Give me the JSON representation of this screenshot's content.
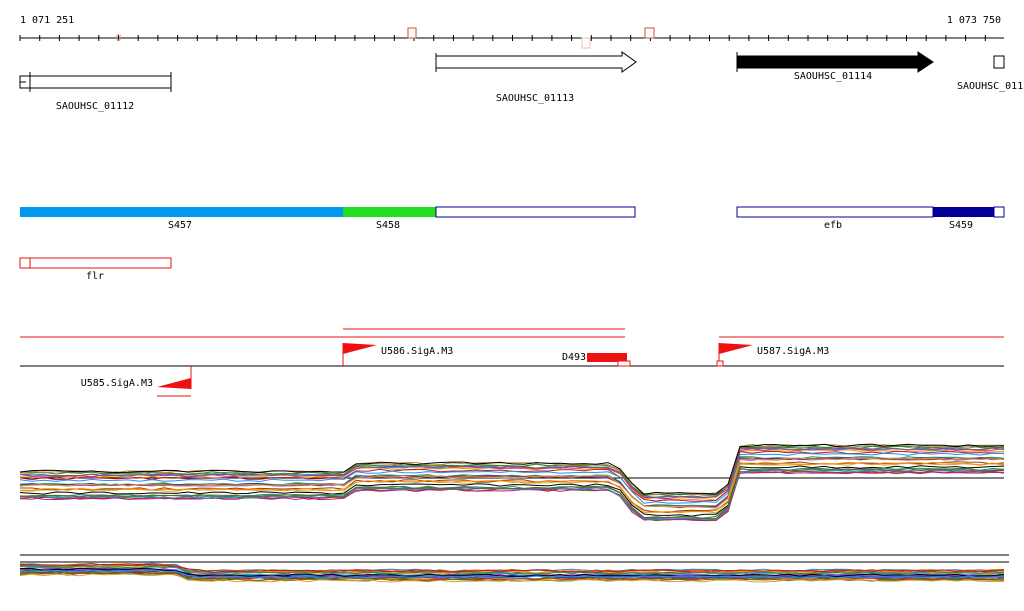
{
  "ruler": {
    "start": "1 071 251",
    "end": "1 073 750"
  },
  "genes": [
    {
      "id": "g1",
      "label": "SAOUHSC_01112",
      "filled": false,
      "direction": "left"
    },
    {
      "id": "g2",
      "label": "SAOUHSC_01113",
      "filled": false,
      "direction": "right"
    },
    {
      "id": "g3",
      "label": "SAOUHSC_01114",
      "filled": true,
      "direction": "right"
    },
    {
      "id": "g4",
      "label": "SAOUHSC_011",
      "filled": false,
      "direction": "right"
    }
  ],
  "segments": [
    {
      "label": "S457",
      "color": "#0099ee"
    },
    {
      "label": "S458",
      "color": "#22dd22"
    },
    {
      "label": "",
      "color": "#ffffff"
    },
    {
      "label": "efb",
      "color": "#ffffff"
    },
    {
      "label": "S459",
      "color": "#000099"
    }
  ],
  "features": [
    {
      "label": "flr"
    }
  ],
  "promoters": [
    {
      "label": "U586.SigA.M3"
    },
    {
      "label": "U587.SigA.M3"
    },
    {
      "label": "U585.SigA.M3"
    }
  ],
  "deletions": [
    {
      "label": "D493"
    }
  ],
  "colors": {
    "feature": "#ee1111",
    "segment_border": "#000099",
    "gene_border": "#000000",
    "axis": "#000000"
  }
}
